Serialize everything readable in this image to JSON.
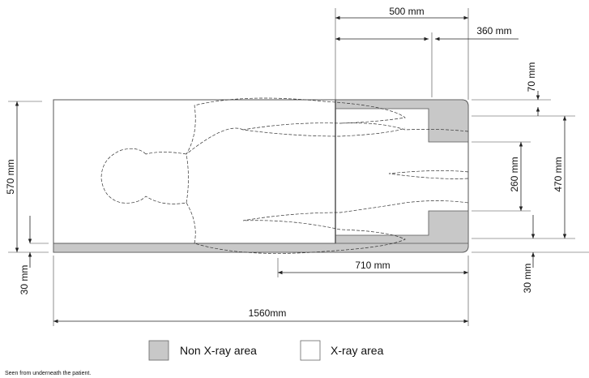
{
  "dimensions": [
    "500 mm",
    "360 mm",
    "70 mm",
    "570 mm",
    "30 mm",
    "260 mm",
    "470 mm",
    "30 mm",
    "710 mm",
    "1560mm"
  ],
  "legend": [
    "Non X-ray area",
    "X-ray area"
  ],
  "caption": "Seen from underneath the patient."
}
